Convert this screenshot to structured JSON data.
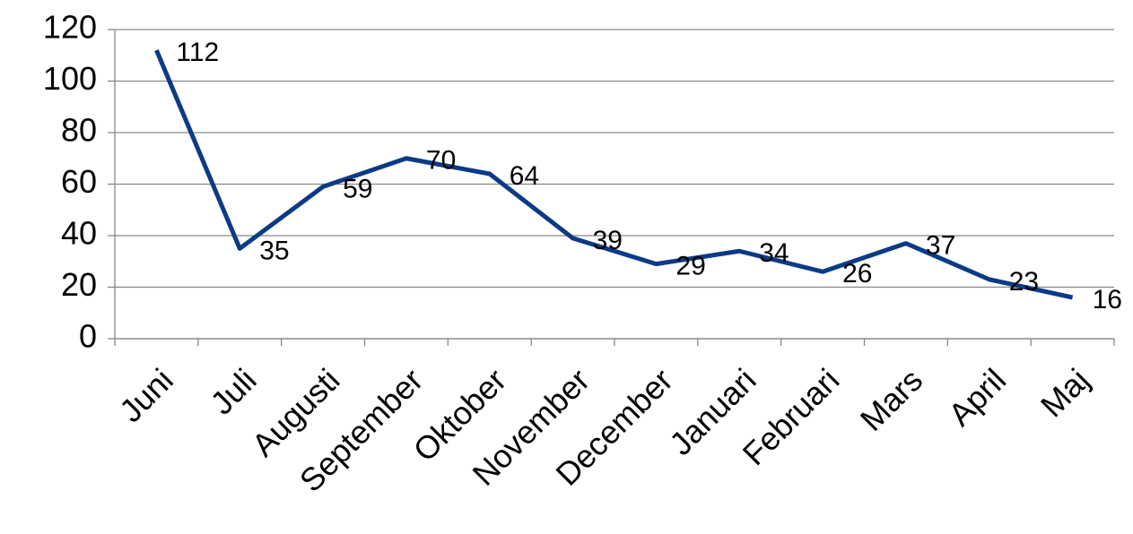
{
  "chart_data": {
    "type": "line",
    "categories": [
      "Juni",
      "Juli",
      "Augusti",
      "September",
      "Oktober",
      "November",
      "December",
      "Januari",
      "Februari",
      "Mars",
      "April",
      "Maj"
    ],
    "values": [
      112,
      35,
      59,
      70,
      64,
      39,
      29,
      34,
      26,
      37,
      23,
      16
    ],
    "color": "#0b3b86",
    "ylim": [
      0,
      120
    ],
    "yticks": [
      0,
      20,
      40,
      60,
      80,
      100,
      120
    ],
    "grid": true
  }
}
